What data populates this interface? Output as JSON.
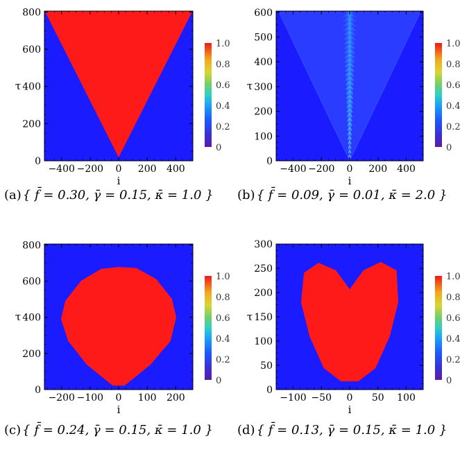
{
  "chart_data": [
    {
      "type": "heatmap",
      "panel": "a",
      "caption_label": "(a)",
      "caption_params": "{ f̄ = 0.30, γ̄ = 0.15, κ̄ = 1.0 }",
      "xlabel": "i",
      "ylabel": "τ",
      "xlim": [
        -520,
        520
      ],
      "ylim": [
        0,
        805
      ],
      "xticks": [
        -400,
        -200,
        0,
        200,
        400
      ],
      "yticks": [
        0,
        200,
        400,
        600,
        800
      ],
      "colorbar": {
        "ticks": [
          0,
          0.2,
          0.4,
          0.6,
          0.8,
          1.0
        ],
        "tick_labels": [
          "0",
          "0.2",
          "0.4",
          "0.6",
          "0.8",
          "1.0"
        ]
      },
      "background_value": 0.0,
      "active_region": {
        "shape": "cone",
        "value": 1.0,
        "outline": [
          [
            0,
            25
          ],
          [
            -510,
            800
          ],
          [
            510,
            800
          ]
        ]
      }
    },
    {
      "type": "heatmap",
      "panel": "b",
      "caption_label": "(b)",
      "caption_params": "{ f̄ = 0.09, γ̄ = 0.01, κ̄ = 2.0 }",
      "xlabel": "i",
      "ylabel": "τ",
      "xlim": [
        -520,
        520
      ],
      "ylim": [
        0,
        605
      ],
      "xticks": [
        -400,
        -200,
        0,
        200,
        400
      ],
      "yticks": [
        0,
        100,
        200,
        300,
        400,
        500,
        600
      ],
      "colorbar": {
        "ticks": [
          0,
          0.2,
          0.4,
          0.6,
          0.8,
          1.0
        ],
        "tick_labels": [
          "0",
          "0.2",
          "0.4",
          "0.6",
          "0.8",
          "1.0"
        ]
      },
      "background_value": 0.05,
      "active_region": {
        "shape": "faint-cone-with-central-beam",
        "value_range": [
          0.05,
          0.25
        ],
        "cone_outline": [
          [
            0,
            0
          ],
          [
            -500,
            600
          ],
          [
            500,
            600
          ]
        ],
        "beam_half_width": 45
      }
    },
    {
      "type": "heatmap",
      "panel": "c",
      "caption_label": "(c)",
      "caption_params": "{ f̄ = 0.24, γ̄ = 0.15, κ̄ = 1.0 }",
      "xlabel": "i",
      "ylabel": "τ",
      "xlim": [
        -260,
        260
      ],
      "ylim": [
        0,
        805
      ],
      "xticks": [
        -200,
        -100,
        0,
        100,
        200
      ],
      "yticks": [
        0,
        200,
        400,
        600,
        800
      ],
      "colorbar": {
        "ticks": [
          0,
          0.2,
          0.4,
          0.6,
          0.8,
          1.0
        ],
        "tick_labels": [
          "0",
          "0.2",
          "0.4",
          "0.6",
          "0.8",
          "1.0"
        ]
      },
      "background_value": 0.0,
      "active_region": {
        "shape": "rounded-cup",
        "value": 1.0,
        "outline": [
          [
            -20,
            25
          ],
          [
            -110,
            140
          ],
          [
            -175,
            270
          ],
          [
            -200,
            390
          ],
          [
            -185,
            490
          ],
          [
            -130,
            600
          ],
          [
            -60,
            665
          ],
          [
            0,
            675
          ],
          [
            60,
            670
          ],
          [
            130,
            610
          ],
          [
            185,
            500
          ],
          [
            200,
            400
          ],
          [
            180,
            270
          ],
          [
            110,
            140
          ],
          [
            20,
            25
          ]
        ]
      }
    },
    {
      "type": "heatmap",
      "panel": "d",
      "caption_label": "(d)",
      "caption_params": "{ f̄ = 0.13, γ̄ = 0.15, κ̄ = 1.0 }",
      "xlabel": "i",
      "ylabel": "τ",
      "xlim": [
        -130,
        130
      ],
      "ylim": [
        0,
        300
      ],
      "xticks": [
        -100,
        -50,
        0,
        50,
        100
      ],
      "yticks": [
        0,
        50,
        100,
        150,
        200,
        250,
        300
      ],
      "colorbar": {
        "ticks": [
          0,
          0.2,
          0.4,
          0.6,
          0.8,
          1.0
        ],
        "tick_labels": [
          "0",
          "0.2",
          "0.4",
          "0.6",
          "0.8",
          "1.0"
        ]
      },
      "background_value": 0.0,
      "active_region": {
        "shape": "heart",
        "value": 1.0,
        "outline": [
          [
            -15,
            18
          ],
          [
            -45,
            45
          ],
          [
            -70,
            110
          ],
          [
            -85,
            180
          ],
          [
            -80,
            240
          ],
          [
            -55,
            260
          ],
          [
            -25,
            245
          ],
          [
            0,
            205
          ],
          [
            25,
            245
          ],
          [
            55,
            262
          ],
          [
            82,
            245
          ],
          [
            85,
            180
          ],
          [
            70,
            110
          ],
          [
            45,
            45
          ],
          [
            15,
            18
          ]
        ]
      }
    }
  ]
}
